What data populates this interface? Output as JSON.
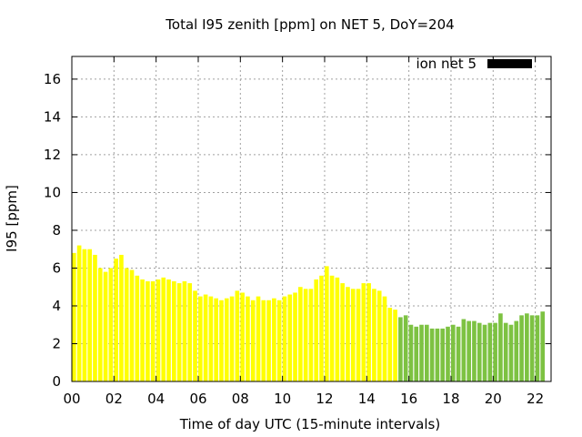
{
  "chart_data": {
    "type": "bar",
    "title": "Total I95 zenith [ppm] on NET 5, DoY=204",
    "xlabel": "Time of day UTC (15-minute intervals)",
    "ylabel": "I95 [ppm]",
    "xlim": [
      0,
      22.75
    ],
    "ylim": [
      0,
      17.2
    ],
    "x_ticks": [
      "00",
      "02",
      "04",
      "06",
      "08",
      "10",
      "12",
      "14",
      "16",
      "18",
      "20",
      "22"
    ],
    "y_ticks": [
      "0",
      "2",
      "4",
      "6",
      "8",
      "10",
      "12",
      "14",
      "16"
    ],
    "grid": true,
    "legend_position": "top-right",
    "colors": {
      "yellow": "#ffff00",
      "green": "#7dc242",
      "legend": "#000000"
    },
    "x_start_hour": 0,
    "interval_hours": 0.25,
    "green_from_index": 62,
    "series": [
      {
        "name": "ion net 5",
        "values": [
          6.8,
          7.2,
          7.0,
          7.0,
          6.7,
          6.0,
          5.8,
          6.0,
          6.5,
          6.7,
          6.0,
          5.9,
          5.6,
          5.4,
          5.3,
          5.3,
          5.4,
          5.5,
          5.4,
          5.3,
          5.2,
          5.3,
          5.2,
          4.8,
          4.5,
          4.6,
          4.5,
          4.4,
          4.3,
          4.4,
          4.5,
          4.8,
          4.7,
          4.5,
          4.3,
          4.5,
          4.3,
          4.3,
          4.4,
          4.3,
          4.5,
          4.6,
          4.7,
          5.0,
          4.9,
          4.9,
          5.4,
          5.6,
          6.1,
          5.6,
          5.5,
          5.2,
          5.0,
          4.9,
          4.9,
          5.2,
          5.2,
          4.9,
          4.8,
          4.5,
          3.9,
          3.8,
          3.4,
          3.5,
          3.0,
          2.9,
          3.0,
          3.0,
          2.8,
          2.8,
          2.8,
          2.9,
          3.0,
          2.9,
          3.3,
          3.2,
          3.2,
          3.1,
          3.0,
          3.1,
          3.1,
          3.6,
          3.1,
          3.0,
          3.2,
          3.5,
          3.6,
          3.5,
          3.5,
          3.7
        ]
      }
    ]
  }
}
